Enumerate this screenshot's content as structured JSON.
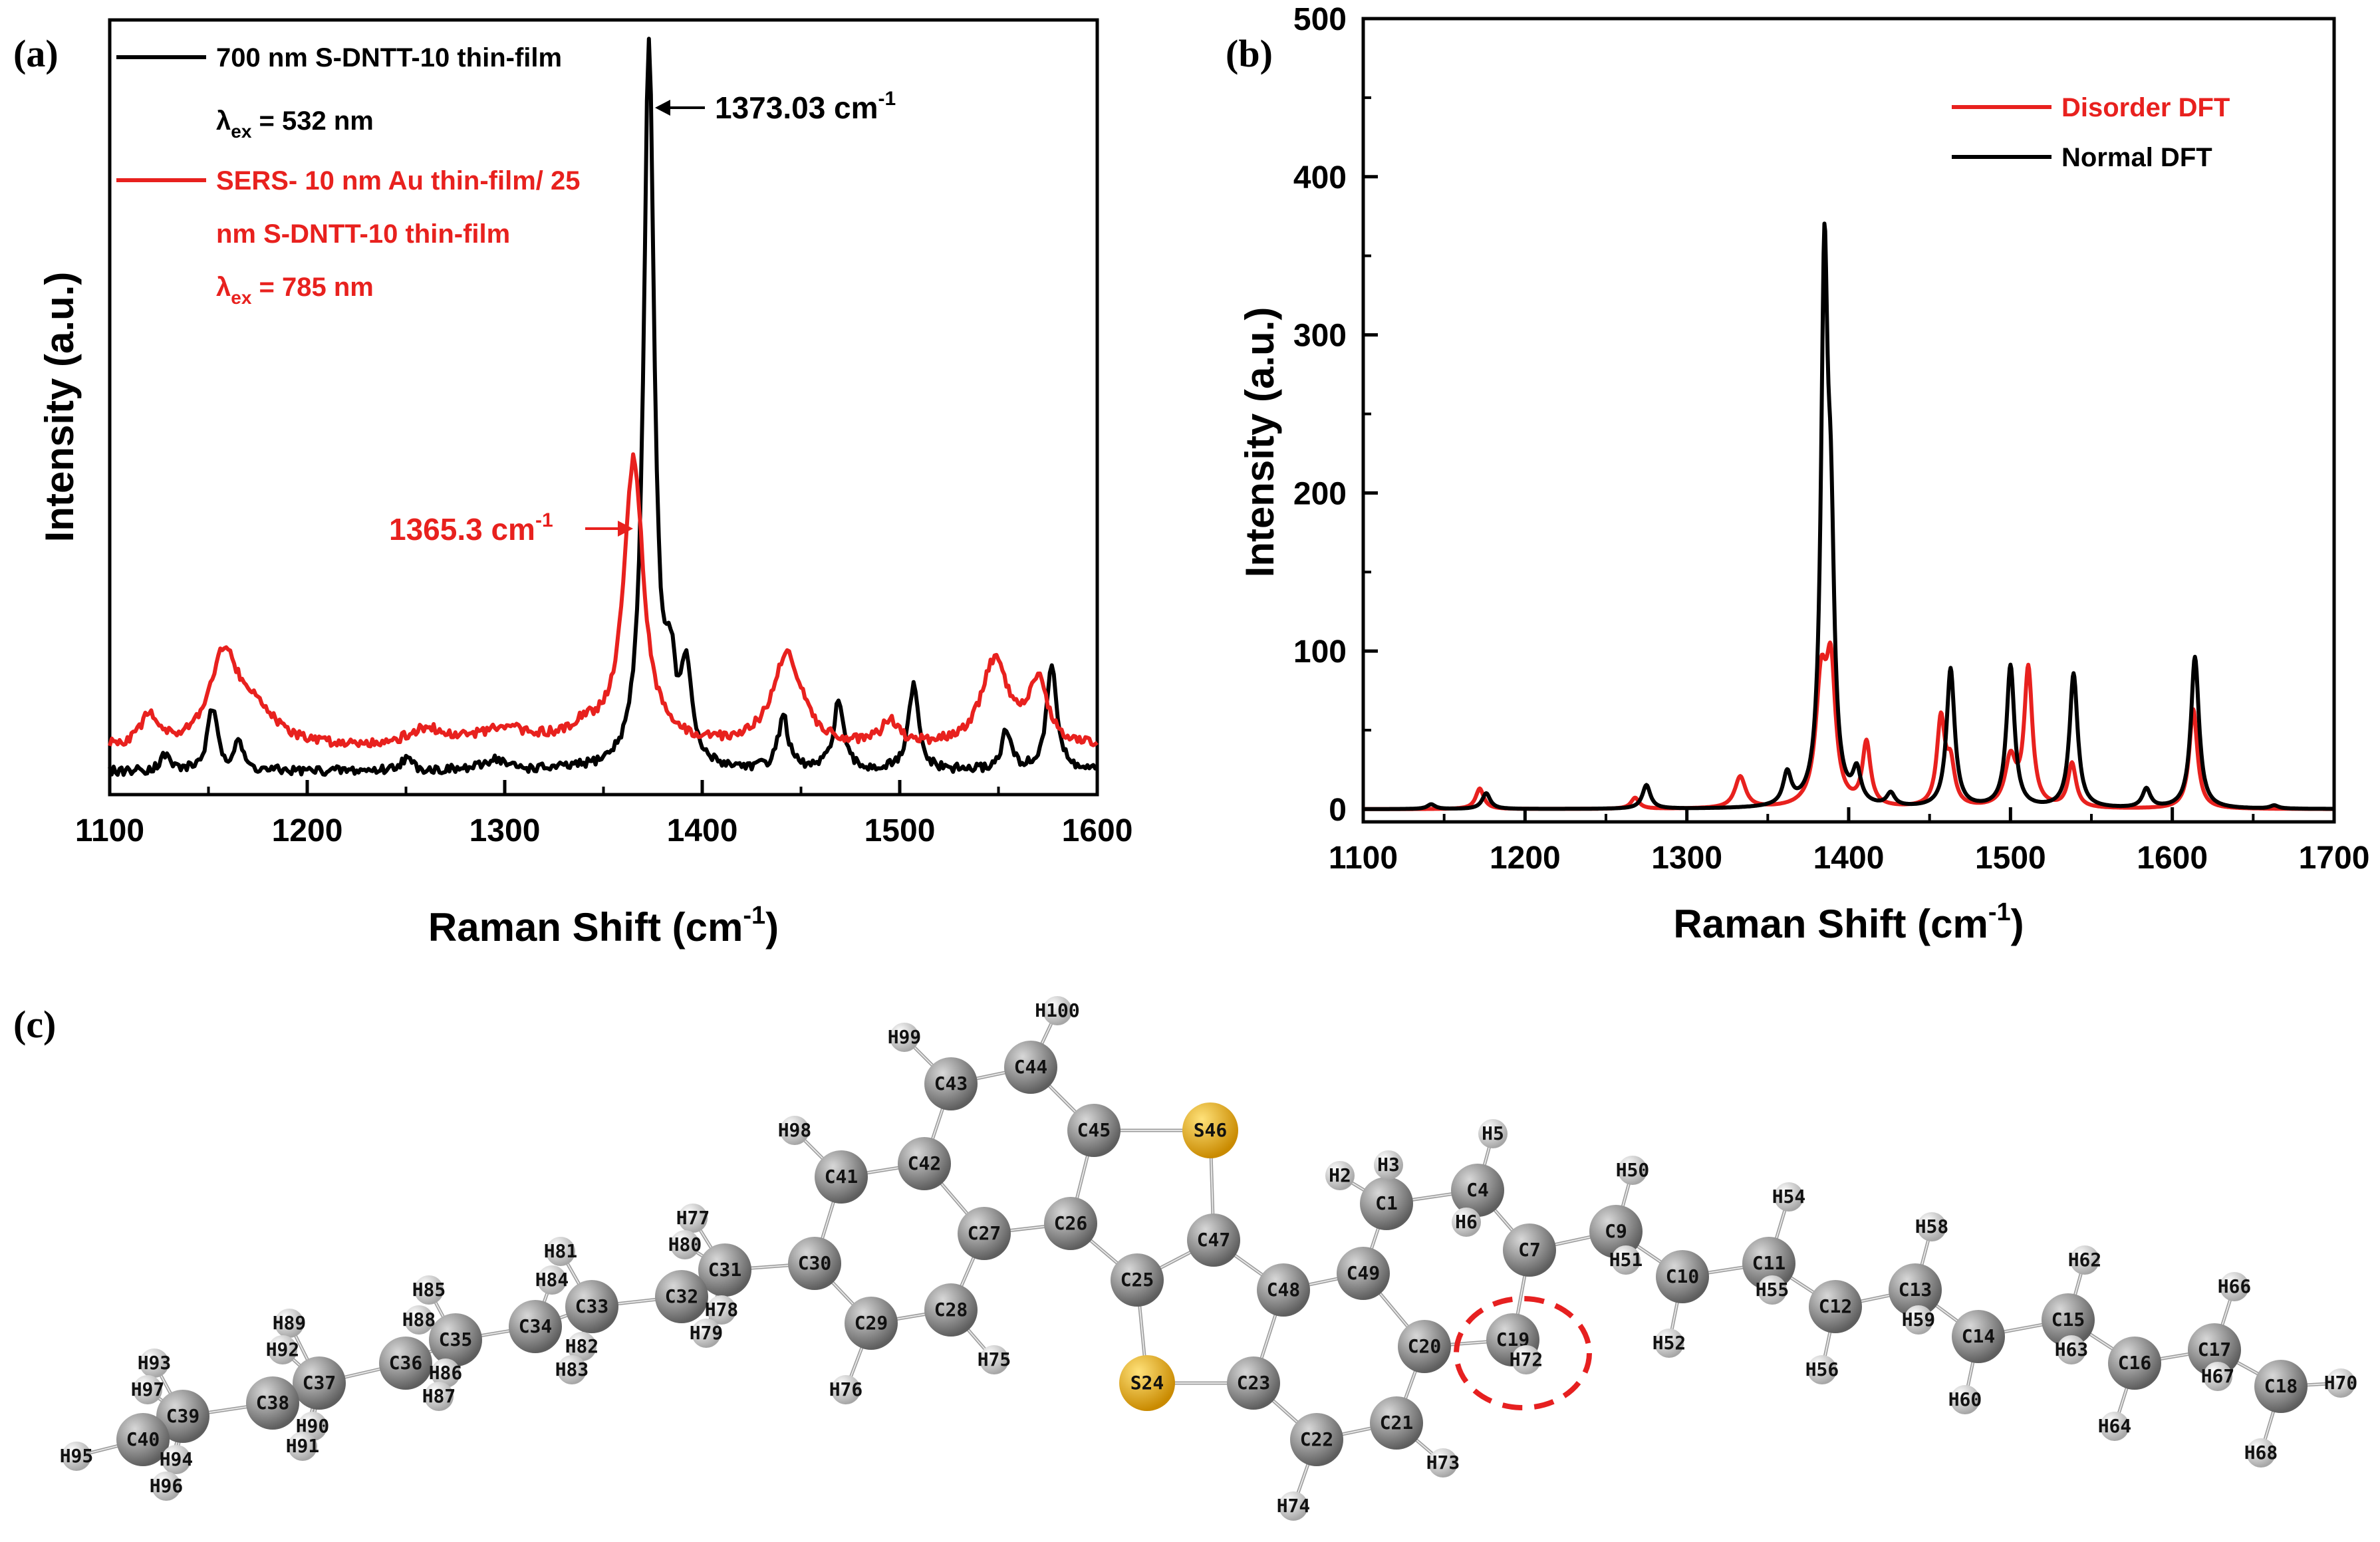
{
  "colors": {
    "black": "#000000",
    "red": "#e8211e",
    "carbon": "#8c8c8c",
    "hydrogen": "#d6d6d6",
    "sulfur": "#f2b61a",
    "highlight": "#e62020"
  },
  "chart_data": [
    {
      "panel": "(a)",
      "type": "line",
      "xlabel": "Raman Shift (cm",
      "xlabel_sup": "-1",
      "xlabel_close": ")",
      "ylabel": "Intensity (a.u.)",
      "xlim": [
        1100,
        1600
      ],
      "ylim": [
        0,
        1
      ],
      "yticks_shown": false,
      "x_ticks": [
        "1100",
        "1200",
        "1300",
        "1400",
        "1500",
        "1600"
      ],
      "legend_position": "top-left",
      "legend": [
        {
          "text": "700 nm S-DNTT-10 thin-film",
          "color": "black",
          "with_line": true
        },
        {
          "text_main": "λ",
          "text_sub": "ex",
          "text_rest": " = 532 nm",
          "color": "black",
          "with_line": false
        },
        {
          "text": "SERS- 10 nm Au thin-film/ 25",
          "color": "red",
          "with_line": true
        },
        {
          "text": "nm S-DNTT-10 thin-film",
          "color": "red",
          "with_line": false
        },
        {
          "text_main": "λ",
          "text_sub": "ex",
          "text_rest": " = 785 nm",
          "color": "red",
          "with_line": false
        }
      ],
      "annotations": [
        {
          "text": "1373.03 cm",
          "sup": "-1",
          "color": "black",
          "x": 1373.03
        },
        {
          "text": "1365.3 cm",
          "sup": "-1",
          "color": "red",
          "x": 1365.3
        }
      ],
      "series": [
        {
          "color": "black",
          "baseline": 0.03,
          "peaks": [
            [
              1128,
              0.02,
              3
            ],
            [
              1152,
              0.08,
              3
            ],
            [
              1165,
              0.04,
              2.5
            ],
            [
              1250,
              0.015,
              4
            ],
            [
              1295,
              0.015,
              6
            ],
            [
              1373.03,
              0.94,
              3.2
            ],
            [
              1384,
              0.1,
              3
            ],
            [
              1392,
              0.12,
              3
            ],
            [
              1441,
              0.07,
              3
            ],
            [
              1469,
              0.09,
              3
            ],
            [
              1507,
              0.11,
              3
            ],
            [
              1554,
              0.05,
              3
            ],
            [
              1577,
              0.14,
              3
            ]
          ]
        },
        {
          "color": "red",
          "baseline": 0.06,
          "peaks": [
            [
              1120,
              0.04,
              5
            ],
            [
              1158,
              0.12,
              9
            ],
            [
              1175,
              0.04,
              10
            ],
            [
              1260,
              0.02,
              10
            ],
            [
              1300,
              0.02,
              20
            ],
            [
              1365.3,
              0.37,
              6
            ],
            [
              1340,
              0.02,
              8
            ],
            [
              1443,
              0.12,
              9
            ],
            [
              1495,
              0.03,
              5
            ],
            [
              1548,
              0.11,
              8
            ],
            [
              1570,
              0.08,
              6
            ]
          ]
        }
      ]
    },
    {
      "panel": "(b)",
      "type": "line",
      "xlabel": "Raman Shift (cm",
      "xlabel_sup": "-1",
      "xlabel_close": ")",
      "ylabel": "Intensity (a.u.)",
      "xlim": [
        1100,
        1700
      ],
      "ylim": [
        -8,
        500
      ],
      "x_ticks": [
        "1100",
        "1200",
        "1300",
        "1400",
        "1500",
        "1600",
        "1700"
      ],
      "y_ticks": [
        "0",
        "100",
        "200",
        "300",
        "400",
        "500"
      ],
      "legend_position": "top-right",
      "legend": [
        {
          "text": "Disorder DFT",
          "color": "red"
        },
        {
          "text": "Normal DFT",
          "color": "black"
        }
      ],
      "series": [
        {
          "name": "Disorder DFT",
          "color": "red",
          "peaks": [
            [
              1172,
              13,
              3
            ],
            [
              1268,
              7,
              3
            ],
            [
              1333,
              20,
              4
            ],
            [
              1383,
              75,
              4
            ],
            [
              1389,
              80,
              3.5
            ],
            [
              1411,
              40,
              3
            ],
            [
              1457,
              55,
              3
            ],
            [
              1463,
              25,
              3
            ],
            [
              1500,
              30,
              4
            ],
            [
              1511,
              87,
              3
            ],
            [
              1538,
              28,
              3
            ],
            [
              1613,
              63,
              3
            ]
          ]
        },
        {
          "name": "Normal DFT",
          "color": "black",
          "peaks": [
            [
              1142,
              3,
              3
            ],
            [
              1176,
              10,
              3
            ],
            [
              1275,
              15,
              3
            ],
            [
              1362,
              20,
              3
            ],
            [
              1385,
              330,
              2.5
            ],
            [
              1389,
              140,
              2.5
            ],
            [
              1405,
              20,
              3
            ],
            [
              1426,
              8,
              3
            ],
            [
              1463,
              88,
              3
            ],
            [
              1500,
              90,
              3
            ],
            [
              1539,
              85,
              3
            ],
            [
              1584,
              12,
              3
            ],
            [
              1614,
              96,
              3
            ],
            [
              1663,
              2,
              3
            ]
          ]
        }
      ]
    }
  ],
  "molecule": {
    "panel": "(c)",
    "atoms": [
      {
        "l": "C1",
        "t": "C"
      },
      {
        "l": "H2",
        "t": "H"
      },
      {
        "l": "H3",
        "t": "H"
      },
      {
        "l": "C4",
        "t": "C"
      },
      {
        "l": "H5",
        "t": "H"
      },
      {
        "l": "H6",
        "t": "H"
      },
      {
        "l": "C7",
        "t": "C"
      },
      {
        "l": "C9",
        "t": "C"
      },
      {
        "l": "H50",
        "t": "H"
      },
      {
        "l": "H51",
        "t": "H"
      },
      {
        "l": "C10",
        "t": "C"
      },
      {
        "l": "H52",
        "t": "H"
      },
      {
        "l": "C11",
        "t": "C"
      },
      {
        "l": "H54",
        "t": "H"
      },
      {
        "l": "H55",
        "t": "H"
      },
      {
        "l": "C12",
        "t": "C"
      },
      {
        "l": "H56",
        "t": "H"
      },
      {
        "l": "C13",
        "t": "C"
      },
      {
        "l": "H58",
        "t": "H"
      },
      {
        "l": "H59",
        "t": "H"
      },
      {
        "l": "C14",
        "t": "C"
      },
      {
        "l": "H60",
        "t": "H"
      },
      {
        "l": "C15",
        "t": "C"
      },
      {
        "l": "H62",
        "t": "H"
      },
      {
        "l": "H63",
        "t": "H"
      },
      {
        "l": "C16",
        "t": "C"
      },
      {
        "l": "H64",
        "t": "H"
      },
      {
        "l": "C17",
        "t": "C"
      },
      {
        "l": "H66",
        "t": "H"
      },
      {
        "l": "H67",
        "t": "H"
      },
      {
        "l": "C18",
        "t": "C"
      },
      {
        "l": "H68",
        "t": "H"
      },
      {
        "l": "H70",
        "t": "H"
      },
      {
        "l": "C19",
        "t": "C"
      },
      {
        "l": "H72",
        "t": "H"
      },
      {
        "l": "C20",
        "t": "C"
      },
      {
        "l": "C21",
        "t": "C"
      },
      {
        "l": "H73",
        "t": "H"
      },
      {
        "l": "C22",
        "t": "C"
      },
      {
        "l": "H74",
        "t": "H"
      },
      {
        "l": "C23",
        "t": "C"
      },
      {
        "l": "S24",
        "t": "S"
      },
      {
        "l": "C25",
        "t": "C"
      },
      {
        "l": "C26",
        "t": "C"
      },
      {
        "l": "C27",
        "t": "C"
      },
      {
        "l": "C28",
        "t": "C"
      },
      {
        "l": "H75",
        "t": "H"
      },
      {
        "l": "C29",
        "t": "C"
      },
      {
        "l": "H76",
        "t": "H"
      },
      {
        "l": "C30",
        "t": "C"
      },
      {
        "l": "C31",
        "t": "C"
      },
      {
        "l": "H77",
        "t": "H"
      },
      {
        "l": "H78",
        "t": "H"
      },
      {
        "l": "H79",
        "t": "H"
      },
      {
        "l": "H80",
        "t": "H"
      },
      {
        "l": "C32",
        "t": "C"
      },
      {
        "l": "C33",
        "t": "C"
      },
      {
        "l": "H81",
        "t": "H"
      },
      {
        "l": "H82",
        "t": "H"
      },
      {
        "l": "H83",
        "t": "H"
      },
      {
        "l": "C34",
        "t": "C"
      },
      {
        "l": "H84",
        "t": "H"
      },
      {
        "l": "C35",
        "t": "C"
      },
      {
        "l": "H85",
        "t": "H"
      },
      {
        "l": "H86",
        "t": "H"
      },
      {
        "l": "H87",
        "t": "H"
      },
      {
        "l": "H88",
        "t": "H"
      },
      {
        "l": "C36",
        "t": "C"
      },
      {
        "l": "C37",
        "t": "C"
      },
      {
        "l": "H89",
        "t": "H"
      },
      {
        "l": "H90",
        "t": "H"
      },
      {
        "l": "H91",
        "t": "H"
      },
      {
        "l": "H92",
        "t": "H"
      },
      {
        "l": "C38",
        "t": "C"
      },
      {
        "l": "C39",
        "t": "C"
      },
      {
        "l": "H93",
        "t": "H"
      },
      {
        "l": "H94",
        "t": "H"
      },
      {
        "l": "H95",
        "t": "H"
      },
      {
        "l": "H96",
        "t": "H"
      },
      {
        "l": "H97",
        "t": "H"
      },
      {
        "l": "C40",
        "t": "C"
      },
      {
        "l": "C41",
        "t": "C"
      },
      {
        "l": "H98",
        "t": "H"
      },
      {
        "l": "C42",
        "t": "C"
      },
      {
        "l": "C43",
        "t": "C"
      },
      {
        "l": "H99",
        "t": "H"
      },
      {
        "l": "C44",
        "t": "C"
      },
      {
        "l": "H100",
        "t": "H"
      },
      {
        "l": "C45",
        "t": "C"
      },
      {
        "l": "S46",
        "t": "S"
      },
      {
        "l": "C47",
        "t": "C"
      },
      {
        "l": "C48",
        "t": "C"
      },
      {
        "l": "C49",
        "t": "C"
      }
    ]
  }
}
